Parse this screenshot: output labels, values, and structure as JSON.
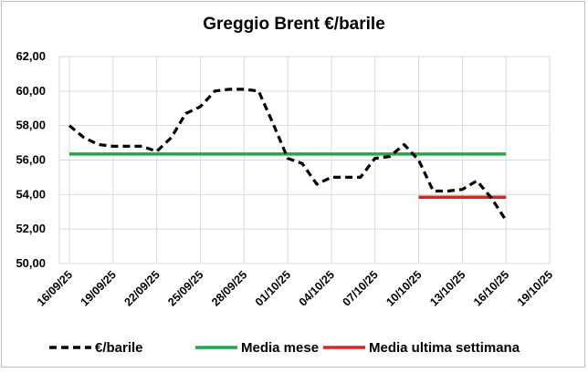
{
  "chart_data": {
    "type": "line",
    "title": "Greggio Brent €/barile",
    "xlabel": "",
    "ylabel": "",
    "ylim": [
      50,
      62
    ],
    "y_ticks": [
      "50,00",
      "52,00",
      "54,00",
      "56,00",
      "58,00",
      "60,00",
      "62,00"
    ],
    "x_ticks": [
      "16/09/25",
      "19/09/25",
      "22/09/25",
      "25/09/25",
      "28/09/25",
      "01/10/25",
      "04/10/25",
      "07/10/25",
      "10/10/25",
      "13/10/25",
      "16/10/25",
      "19/10/25"
    ],
    "grid": true,
    "legend_position": "bottom",
    "series": [
      {
        "name": "€/barile",
        "style": "dashed",
        "color": "#000000",
        "x": [
          "16/09/25",
          "17/09/25",
          "18/09/25",
          "19/09/25",
          "20/09/25",
          "21/09/25",
          "22/09/25",
          "23/09/25",
          "24/09/25",
          "25/09/25",
          "26/09/25",
          "27/09/25",
          "28/09/25",
          "29/09/25",
          "30/09/25",
          "01/10/25",
          "02/10/25",
          "03/10/25",
          "04/10/25",
          "05/10/25",
          "06/10/25",
          "07/10/25",
          "08/10/25",
          "09/10/25",
          "10/10/25",
          "11/10/25",
          "12/10/25",
          "13/10/25",
          "14/10/25",
          "15/10/25",
          "16/10/25"
        ],
        "values": [
          58.0,
          57.3,
          56.9,
          56.8,
          56.8,
          56.8,
          56.5,
          57.3,
          58.7,
          59.1,
          60.0,
          60.1,
          60.1,
          60.0,
          58.1,
          56.1,
          55.8,
          54.6,
          55.0,
          55.0,
          55.0,
          56.1,
          56.2,
          56.9,
          56.0,
          54.2,
          54.2,
          54.3,
          54.8,
          53.8,
          52.5
        ]
      },
      {
        "name": "Media mese",
        "style": "solid",
        "color": "#1fa84a",
        "x": [
          "16/09/25",
          "16/10/25"
        ],
        "values": [
          56.35,
          56.35
        ]
      },
      {
        "name": "Media ultima settimana",
        "style": "solid",
        "color": "#dd2222",
        "x": [
          "10/10/25",
          "16/10/25"
        ],
        "values": [
          53.85,
          53.85
        ]
      }
    ]
  }
}
